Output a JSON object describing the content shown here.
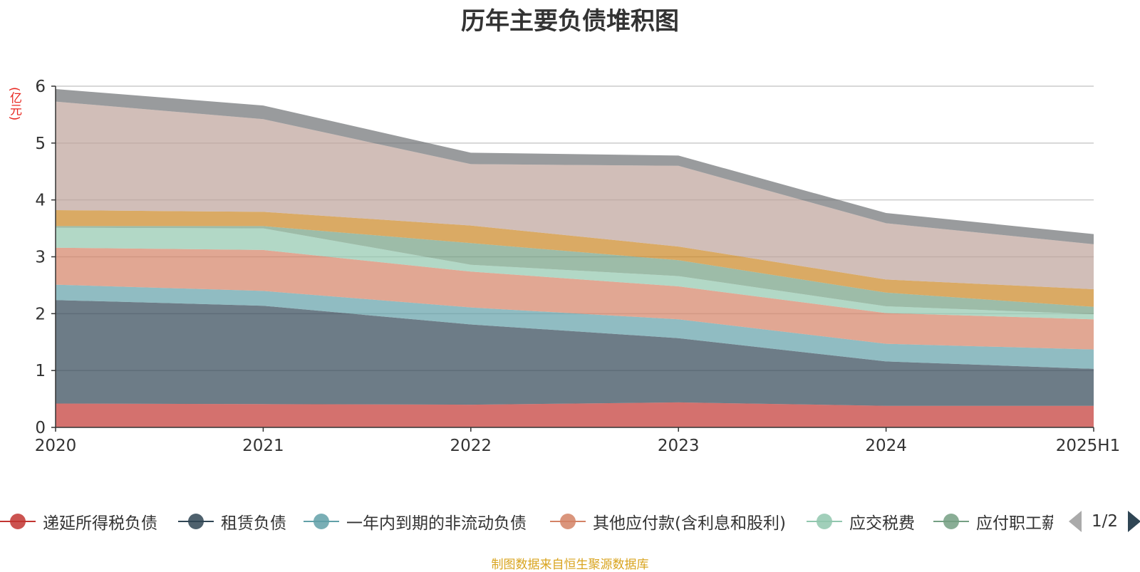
{
  "chart_data": {
    "type": "area",
    "stacked": true,
    "title": "历年主要负债堆积图",
    "y_unit_label": "(亿元)",
    "categories": [
      "2020",
      "2021",
      "2022",
      "2023",
      "2024",
      "2025H1"
    ],
    "ylim": [
      0,
      6
    ],
    "yticks": [
      "0",
      "1",
      "2",
      "3",
      "4",
      "5",
      "6"
    ],
    "grid": true,
    "legend_position": "bottom",
    "series": [
      {
        "name": "递延所得税负债",
        "color": "#c23531",
        "values": [
          0.42,
          0.41,
          0.4,
          0.44,
          0.38,
          0.38
        ]
      },
      {
        "name": "租赁负债",
        "color": "#2f4554",
        "values": [
          1.82,
          1.73,
          1.41,
          1.13,
          0.78,
          0.65
        ]
      },
      {
        "name": "一年内到期的非流动负债",
        "color": "#61a0a8",
        "values": [
          0.27,
          0.26,
          0.3,
          0.33,
          0.31,
          0.34
        ]
      },
      {
        "name": "其他应付款(含利息和股利)",
        "color": "#d48265",
        "values": [
          0.65,
          0.72,
          0.63,
          0.58,
          0.54,
          0.53
        ]
      },
      {
        "name": "应交税费",
        "color": "#91c7ae",
        "values": [
          0.35,
          0.38,
          0.12,
          0.18,
          0.12,
          0.09
        ]
      },
      {
        "name": "应付职工薪酬",
        "color": "#749f83",
        "values": [
          0.03,
          0.04,
          0.38,
          0.28,
          0.24,
          0.13
        ]
      },
      {
        "name": "",
        "color": "#ca8622",
        "values": [
          0.28,
          0.25,
          0.31,
          0.24,
          0.23,
          0.31
        ]
      },
      {
        "name": "",
        "color": "#bda29a",
        "values": [
          1.91,
          1.63,
          1.08,
          1.42,
          0.99,
          0.79
        ]
      },
      {
        "name": "",
        "color": "#6e7074",
        "values": [
          0.22,
          0.24,
          0.2,
          0.18,
          0.18,
          0.18
        ]
      }
    ]
  },
  "legend": {
    "items": [
      "递延所得税负债",
      "租赁负债",
      "一年内到期的非流动负债",
      "其他应付款(含利息和股利)",
      "应交税费",
      "应付职工薪酬"
    ],
    "page_indicator": "1/2"
  },
  "footer": {
    "source": "制图数据来自恒生聚源数据库"
  }
}
